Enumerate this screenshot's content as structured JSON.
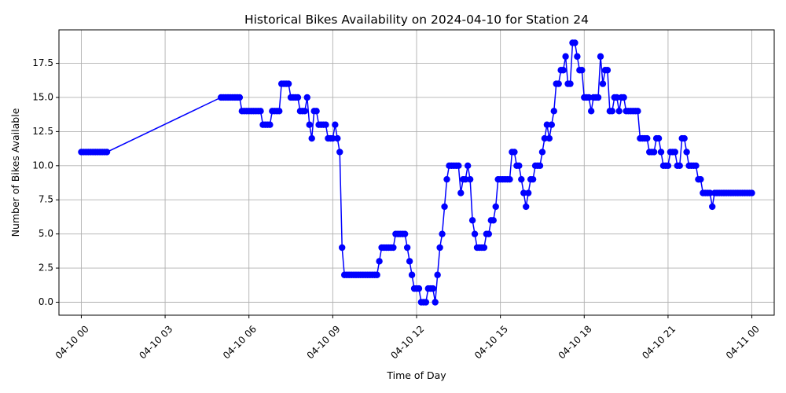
{
  "chart_data": {
    "type": "line",
    "title": "Historical Bikes Availability on 2024-04-10 for Station 24",
    "xlabel": "Time of Day",
    "ylabel": "Number of Bikes Available",
    "xlim": [
      "2024-04-09 23:12",
      "2024-04-11 00:48"
    ],
    "ylim": [
      -0.95,
      19.95
    ],
    "grid": true,
    "x_ticks": [
      {
        "label": "04-10 00",
        "time": "2024-04-10 00:00"
      },
      {
        "label": "04-10 03",
        "time": "2024-04-10 03:00"
      },
      {
        "label": "04-10 06",
        "time": "2024-04-10 06:00"
      },
      {
        "label": "04-10 09",
        "time": "2024-04-10 09:00"
      },
      {
        "label": "04-10 12",
        "time": "2024-04-10 12:00"
      },
      {
        "label": "04-10 15",
        "time": "2024-04-10 15:00"
      },
      {
        "label": "04-10 18",
        "time": "2024-04-10 18:00"
      },
      {
        "label": "04-10 21",
        "time": "2024-04-10 21:00"
      },
      {
        "label": "04-11 00",
        "time": "2024-04-11 00:00"
      }
    ],
    "y_ticks": [
      "0.0",
      "2.5",
      "5.0",
      "7.5",
      "10.0",
      "12.5",
      "15.0",
      "17.5"
    ],
    "series": [
      {
        "color": "#0000ff",
        "marker": "circle",
        "points": [
          [
            "00:00",
            11
          ],
          [
            "00:05",
            11
          ],
          [
            "00:10",
            11
          ],
          [
            "00:15",
            11
          ],
          [
            "00:20",
            11
          ],
          [
            "00:25",
            11
          ],
          [
            "00:30",
            11
          ],
          [
            "00:35",
            11
          ],
          [
            "00:40",
            11
          ],
          [
            "00:45",
            11
          ],
          [
            "00:50",
            11
          ],
          [
            "00:55",
            11
          ],
          [
            "05:00",
            15
          ],
          [
            "05:05",
            15
          ],
          [
            "05:10",
            15
          ],
          [
            "05:15",
            15
          ],
          [
            "05:20",
            15
          ],
          [
            "05:25",
            15
          ],
          [
            "05:30",
            15
          ],
          [
            "05:35",
            15
          ],
          [
            "05:40",
            15
          ],
          [
            "05:45",
            14
          ],
          [
            "05:50",
            14
          ],
          [
            "05:55",
            14
          ],
          [
            "06:00",
            14
          ],
          [
            "06:05",
            14
          ],
          [
            "06:10",
            14
          ],
          [
            "06:15",
            14
          ],
          [
            "06:20",
            14
          ],
          [
            "06:25",
            14
          ],
          [
            "06:30",
            13
          ],
          [
            "06:35",
            13
          ],
          [
            "06:40",
            13
          ],
          [
            "06:45",
            13
          ],
          [
            "06:50",
            14
          ],
          [
            "06:55",
            14
          ],
          [
            "07:00",
            14
          ],
          [
            "07:05",
            14
          ],
          [
            "07:10",
            16
          ],
          [
            "07:15",
            16
          ],
          [
            "07:20",
            16
          ],
          [
            "07:25",
            16
          ],
          [
            "07:30",
            15
          ],
          [
            "07:35",
            15
          ],
          [
            "07:40",
            15
          ],
          [
            "07:45",
            15
          ],
          [
            "07:50",
            14
          ],
          [
            "07:55",
            14
          ],
          [
            "08:00",
            14
          ],
          [
            "08:05",
            15
          ],
          [
            "08:10",
            13
          ],
          [
            "08:15",
            12
          ],
          [
            "08:20",
            14
          ],
          [
            "08:25",
            14
          ],
          [
            "08:30",
            13
          ],
          [
            "08:35",
            13
          ],
          [
            "08:40",
            13
          ],
          [
            "08:45",
            13
          ],
          [
            "08:50",
            12
          ],
          [
            "08:55",
            12
          ],
          [
            "09:00",
            12
          ],
          [
            "09:05",
            13
          ],
          [
            "09:10",
            12
          ],
          [
            "09:15",
            11
          ],
          [
            "09:20",
            4
          ],
          [
            "09:25",
            2
          ],
          [
            "09:30",
            2
          ],
          [
            "09:35",
            2
          ],
          [
            "09:40",
            2
          ],
          [
            "09:45",
            2
          ],
          [
            "09:50",
            2
          ],
          [
            "09:55",
            2
          ],
          [
            "10:00",
            2
          ],
          [
            "10:05",
            2
          ],
          [
            "10:10",
            2
          ],
          [
            "10:15",
            2
          ],
          [
            "10:20",
            2
          ],
          [
            "10:25",
            2
          ],
          [
            "10:30",
            2
          ],
          [
            "10:35",
            2
          ],
          [
            "10:40",
            3
          ],
          [
            "10:45",
            4
          ],
          [
            "10:50",
            4
          ],
          [
            "10:55",
            4
          ],
          [
            "11:00",
            4
          ],
          [
            "11:05",
            4
          ],
          [
            "11:10",
            4
          ],
          [
            "11:15",
            5
          ],
          [
            "11:20",
            5
          ],
          [
            "11:25",
            5
          ],
          [
            "11:30",
            5
          ],
          [
            "11:35",
            5
          ],
          [
            "11:40",
            4
          ],
          [
            "11:45",
            3
          ],
          [
            "11:50",
            2
          ],
          [
            "11:55",
            1
          ],
          [
            "12:00",
            1
          ],
          [
            "12:05",
            1
          ],
          [
            "12:10",
            0
          ],
          [
            "12:15",
            0
          ],
          [
            "12:20",
            0
          ],
          [
            "12:25",
            1
          ],
          [
            "12:30",
            1
          ],
          [
            "12:35",
            1
          ],
          [
            "12:40",
            0
          ],
          [
            "12:45",
            2
          ],
          [
            "12:50",
            4
          ],
          [
            "12:55",
            5
          ],
          [
            "13:00",
            7
          ],
          [
            "13:05",
            9
          ],
          [
            "13:10",
            10
          ],
          [
            "13:15",
            10
          ],
          [
            "13:20",
            10
          ],
          [
            "13:25",
            10
          ],
          [
            "13:30",
            10
          ],
          [
            "13:35",
            8
          ],
          [
            "13:40",
            9
          ],
          [
            "13:45",
            9
          ],
          [
            "13:50",
            10
          ],
          [
            "13:55",
            9
          ],
          [
            "14:00",
            6
          ],
          [
            "14:05",
            5
          ],
          [
            "14:10",
            4
          ],
          [
            "14:15",
            4
          ],
          [
            "14:20",
            4
          ],
          [
            "14:25",
            4
          ],
          [
            "14:30",
            5
          ],
          [
            "14:35",
            5
          ],
          [
            "14:40",
            6
          ],
          [
            "14:45",
            6
          ],
          [
            "14:50",
            7
          ],
          [
            "14:55",
            9
          ],
          [
            "15:00",
            9
          ],
          [
            "15:05",
            9
          ],
          [
            "15:10",
            9
          ],
          [
            "15:15",
            9
          ],
          [
            "15:20",
            9
          ],
          [
            "15:25",
            11
          ],
          [
            "15:30",
            11
          ],
          [
            "15:35",
            10
          ],
          [
            "15:40",
            10
          ],
          [
            "15:45",
            9
          ],
          [
            "15:50",
            8
          ],
          [
            "15:55",
            7
          ],
          [
            "16:00",
            8
          ],
          [
            "16:05",
            9
          ],
          [
            "16:10",
            9
          ],
          [
            "16:15",
            10
          ],
          [
            "16:20",
            10
          ],
          [
            "16:25",
            10
          ],
          [
            "16:30",
            11
          ],
          [
            "16:35",
            12
          ],
          [
            "16:40",
            13
          ],
          [
            "16:45",
            12
          ],
          [
            "16:50",
            13
          ],
          [
            "16:55",
            14
          ],
          [
            "17:00",
            16
          ],
          [
            "17:05",
            16
          ],
          [
            "17:10",
            17
          ],
          [
            "17:15",
            17
          ],
          [
            "17:20",
            18
          ],
          [
            "17:25",
            16
          ],
          [
            "17:30",
            16
          ],
          [
            "17:35",
            19
          ],
          [
            "17:40",
            19
          ],
          [
            "17:45",
            18
          ],
          [
            "17:50",
            17
          ],
          [
            "17:55",
            17
          ],
          [
            "18:00",
            15
          ],
          [
            "18:05",
            15
          ],
          [
            "18:10",
            15
          ],
          [
            "18:15",
            14
          ],
          [
            "18:20",
            15
          ],
          [
            "18:25",
            15
          ],
          [
            "18:30",
            15
          ],
          [
            "18:35",
            18
          ],
          [
            "18:40",
            16
          ],
          [
            "18:45",
            17
          ],
          [
            "18:50",
            17
          ],
          [
            "18:55",
            14
          ],
          [
            "19:00",
            14
          ],
          [
            "19:05",
            15
          ],
          [
            "19:10",
            15
          ],
          [
            "19:15",
            14
          ],
          [
            "19:20",
            15
          ],
          [
            "19:25",
            15
          ],
          [
            "19:30",
            14
          ],
          [
            "19:35",
            14
          ],
          [
            "19:40",
            14
          ],
          [
            "19:45",
            14
          ],
          [
            "19:50",
            14
          ],
          [
            "19:55",
            14
          ],
          [
            "20:00",
            12
          ],
          [
            "20:05",
            12
          ],
          [
            "20:10",
            12
          ],
          [
            "20:15",
            12
          ],
          [
            "20:20",
            11
          ],
          [
            "20:25",
            11
          ],
          [
            "20:30",
            11
          ],
          [
            "20:35",
            12
          ],
          [
            "20:40",
            12
          ],
          [
            "20:45",
            11
          ],
          [
            "20:50",
            10
          ],
          [
            "20:55",
            10
          ],
          [
            "21:00",
            10
          ],
          [
            "21:05",
            11
          ],
          [
            "21:10",
            11
          ],
          [
            "21:15",
            11
          ],
          [
            "21:20",
            10
          ],
          [
            "21:25",
            10
          ],
          [
            "21:30",
            12
          ],
          [
            "21:35",
            12
          ],
          [
            "21:40",
            11
          ],
          [
            "21:45",
            10
          ],
          [
            "21:50",
            10
          ],
          [
            "21:55",
            10
          ],
          [
            "22:00",
            10
          ],
          [
            "22:05",
            9
          ],
          [
            "22:10",
            9
          ],
          [
            "22:15",
            8
          ],
          [
            "22:20",
            8
          ],
          [
            "22:25",
            8
          ],
          [
            "22:30",
            8
          ],
          [
            "22:35",
            7
          ],
          [
            "22:40",
            8
          ],
          [
            "22:45",
            8
          ],
          [
            "22:50",
            8
          ],
          [
            "22:55",
            8
          ],
          [
            "23:00",
            8
          ],
          [
            "23:05",
            8
          ],
          [
            "23:10",
            8
          ],
          [
            "23:15",
            8
          ],
          [
            "23:20",
            8
          ],
          [
            "23:25",
            8
          ],
          [
            "23:30",
            8
          ],
          [
            "23:35",
            8
          ],
          [
            "23:40",
            8
          ],
          [
            "23:45",
            8
          ],
          [
            "23:50",
            8
          ],
          [
            "23:55",
            8
          ],
          [
            "24:00",
            8
          ]
        ]
      }
    ]
  }
}
